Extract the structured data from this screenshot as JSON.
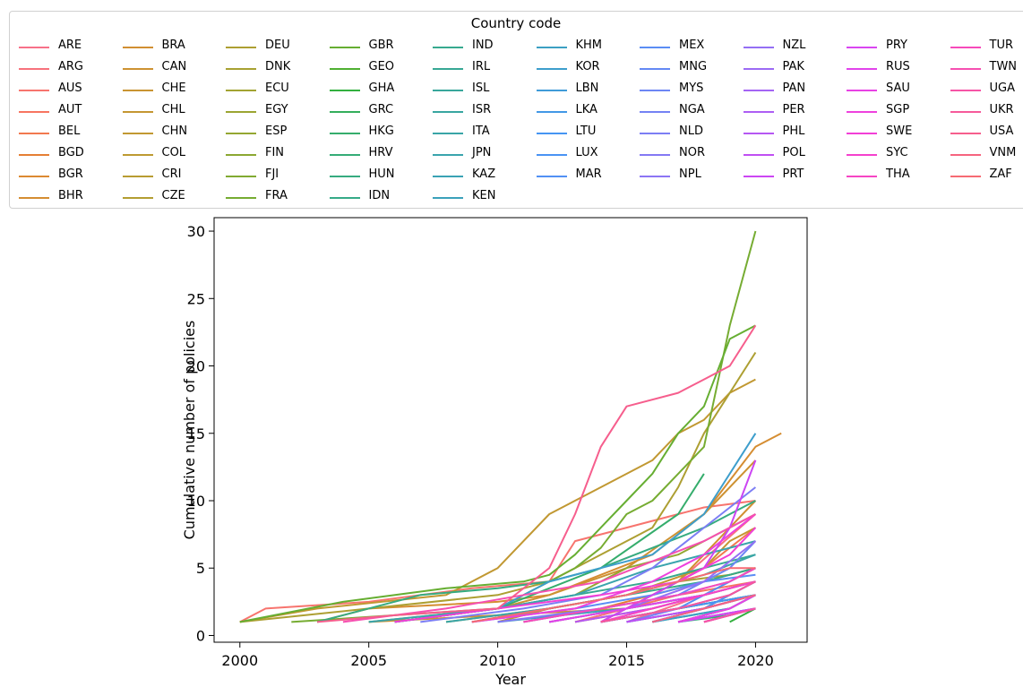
{
  "chart_data": {
    "type": "line",
    "xlabel": "Year",
    "ylabel": "Cumulative number of policies",
    "xlim": [
      1999,
      2022
    ],
    "ylim": [
      -0.5,
      31
    ],
    "xticks": [
      2000,
      2005,
      2010,
      2015,
      2020
    ],
    "yticks": [
      0,
      5,
      10,
      15,
      20,
      25,
      30
    ],
    "grid": false,
    "legend": {
      "title": "Country code",
      "placement": "top",
      "columns": 10
    },
    "series": [
      {
        "name": "ARE",
        "color": "#f77189",
        "x": [
          2015,
          2018,
          2020
        ],
        "y": [
          1,
          3,
          5
        ]
      },
      {
        "name": "ARG",
        "color": "#f7727c",
        "x": [
          2013,
          2015,
          2017,
          2020
        ],
        "y": [
          1,
          2,
          4,
          9
        ]
      },
      {
        "name": "AUS",
        "color": "#f7746e",
        "x": [
          2000,
          2001,
          2005,
          2009,
          2012,
          2013,
          2014,
          2015,
          2017,
          2018,
          2020
        ],
        "y": [
          1,
          2,
          2.5,
          3.5,
          4,
          7,
          7.5,
          8,
          9,
          9.5,
          10
        ]
      },
      {
        "name": "AUT",
        "color": "#f77560",
        "x": [
          2012,
          2015,
          2017,
          2020
        ],
        "y": [
          1,
          2,
          3,
          4
        ]
      },
      {
        "name": "BEL",
        "color": "#f2794f",
        "x": [
          2014,
          2016,
          2018,
          2020
        ],
        "y": [
          1,
          3,
          5,
          8
        ]
      },
      {
        "name": "BGD",
        "color": "#e57f34",
        "x": [
          2011,
          2014,
          2016,
          2018,
          2020
        ],
        "y": [
          1,
          2,
          3,
          4,
          5
        ]
      },
      {
        "name": "BGR",
        "color": "#dc8932",
        "x": [
          2016,
          2018,
          2020
        ],
        "y": [
          1,
          2,
          4
        ]
      },
      {
        "name": "BHR",
        "color": "#d58d32",
        "x": [
          2003,
          2005,
          2010,
          2012,
          2016,
          2018,
          2020,
          2021
        ],
        "y": [
          1,
          2,
          2.5,
          3,
          6,
          9,
          14,
          15
        ]
      },
      {
        "name": "BRA",
        "color": "#d18f32",
        "x": [
          2005,
          2010,
          2015,
          2017,
          2019,
          2020
        ],
        "y": [
          1,
          1.5,
          2,
          4,
          8,
          10
        ]
      },
      {
        "name": "CAN",
        "color": "#cd9232",
        "x": [
          2006,
          2010,
          2012,
          2015,
          2018,
          2020
        ],
        "y": [
          1,
          2,
          3,
          5,
          9,
          13
        ]
      },
      {
        "name": "CHE",
        "color": "#c99432",
        "x": [
          2017,
          2019,
          2020
        ],
        "y": [
          1,
          2,
          3
        ]
      },
      {
        "name": "CHL",
        "color": "#c49632",
        "x": [
          2010,
          2012,
          2015,
          2018,
          2019,
          2020
        ],
        "y": [
          1,
          2,
          3,
          5,
          7,
          8
        ]
      },
      {
        "name": "CHN",
        "color": "#c19832",
        "x": [
          2000,
          2003,
          2008,
          2010,
          2012,
          2014,
          2016,
          2017,
          2018,
          2019,
          2020
        ],
        "y": [
          1,
          2,
          3,
          5,
          9,
          11,
          13,
          15,
          16,
          18,
          19
        ]
      },
      {
        "name": "COL",
        "color": "#bd9a32",
        "x": [
          2016,
          2018,
          2020
        ],
        "y": [
          1,
          2,
          3
        ]
      },
      {
        "name": "CRI",
        "color": "#b89c32",
        "x": [
          2018,
          2020
        ],
        "y": [
          1,
          2
        ]
      },
      {
        "name": "CZE",
        "color": "#b39e32",
        "x": [
          2013,
          2016,
          2018,
          2020
        ],
        "y": [
          1,
          2,
          3,
          4
        ]
      },
      {
        "name": "DEU",
        "color": "#ad9f32",
        "x": [
          2000,
          2005,
          2010,
          2012,
          2014,
          2016,
          2017,
          2018,
          2020
        ],
        "y": [
          1,
          2,
          3,
          4,
          6,
          8,
          11,
          15,
          21
        ]
      },
      {
        "name": "DNK",
        "color": "#a8a132",
        "x": [
          2008,
          2012,
          2015,
          2017,
          2019,
          2020
        ],
        "y": [
          1,
          2,
          3,
          4,
          4.5,
          5
        ]
      },
      {
        "name": "ECU",
        "color": "#a2a332",
        "x": [
          2016,
          2018,
          2020
        ],
        "y": [
          1,
          2,
          3
        ]
      },
      {
        "name": "EGY",
        "color": "#9ba532",
        "x": [
          2014,
          2017,
          2020
        ],
        "y": [
          1,
          2,
          3
        ]
      },
      {
        "name": "ESP",
        "color": "#94a732",
        "x": [
          2005,
          2010,
          2013,
          2015,
          2017,
          2019,
          2020
        ],
        "y": [
          1,
          2,
          3,
          5,
          6,
          8,
          9
        ]
      },
      {
        "name": "FIN",
        "color": "#8ba832",
        "x": [
          2012,
          2015,
          2018,
          2020
        ],
        "y": [
          1,
          2,
          3,
          4
        ]
      },
      {
        "name": "FJI",
        "color": "#81aa32",
        "x": [
          2017,
          2019,
          2020
        ],
        "y": [
          1,
          2,
          3
        ]
      },
      {
        "name": "FRA",
        "color": "#76ac32",
        "x": [
          2002,
          2006,
          2010,
          2012,
          2013,
          2014,
          2015,
          2016,
          2017,
          2018,
          2019,
          2020
        ],
        "y": [
          1,
          1.5,
          2,
          4,
          5,
          6.5,
          9,
          10,
          12,
          14,
          23,
          30
        ]
      },
      {
        "name": "GBR",
        "color": "#66ae32",
        "x": [
          2000,
          2004,
          2008,
          2011,
          2012,
          2013,
          2014,
          2015,
          2016,
          2017,
          2018,
          2019,
          2020
        ],
        "y": [
          1,
          2.5,
          3.5,
          4,
          4.5,
          6,
          8,
          10,
          12,
          15,
          17,
          22,
          23
        ]
      },
      {
        "name": "GEO",
        "color": "#4fb032",
        "x": [
          2017,
          2019,
          2020
        ],
        "y": [
          1,
          2,
          3
        ]
      },
      {
        "name": "GHA",
        "color": "#33b03f",
        "x": [
          2019,
          2020
        ],
        "y": [
          1,
          2
        ]
      },
      {
        "name": "GRC",
        "color": "#34ae5c",
        "x": [
          2014,
          2017,
          2020
        ],
        "y": [
          1,
          2,
          3
        ]
      },
      {
        "name": "HKG",
        "color": "#35ad6c",
        "x": [
          2006,
          2010,
          2014,
          2017,
          2018
        ],
        "y": [
          1,
          2,
          5,
          9,
          12
        ]
      },
      {
        "name": "HRV",
        "color": "#35ac77",
        "x": [
          2017,
          2019,
          2020
        ],
        "y": [
          1,
          1.5,
          2
        ]
      },
      {
        "name": "HUN",
        "color": "#36ab80",
        "x": [
          2003,
          2007,
          2010,
          2012,
          2014,
          2016,
          2018,
          2020
        ],
        "y": [
          1,
          3,
          3.5,
          4,
          5,
          6.5,
          8,
          10
        ]
      },
      {
        "name": "IDN",
        "color": "#36aa88",
        "x": [
          2009,
          2012,
          2015,
          2018,
          2020
        ],
        "y": [
          1,
          2,
          3,
          4,
          5
        ]
      },
      {
        "name": "IND",
        "color": "#37a98f",
        "x": [
          2006,
          2010,
          2013,
          2016,
          2018,
          2020
        ],
        "y": [
          1,
          2,
          3,
          4,
          5,
          6
        ]
      },
      {
        "name": "IRL",
        "color": "#37a895",
        "x": [
          2015,
          2018,
          2020
        ],
        "y": [
          1,
          2,
          3
        ]
      },
      {
        "name": "ISL",
        "color": "#38a79b",
        "x": [
          2016,
          2019,
          2020
        ],
        "y": [
          1,
          2,
          3
        ]
      },
      {
        "name": "ISR",
        "color": "#38a6a1",
        "x": [
          2014,
          2017,
          2020
        ],
        "y": [
          1,
          2,
          3
        ]
      },
      {
        "name": "ITA",
        "color": "#39a5a7",
        "x": [
          2008,
          2012,
          2015,
          2018,
          2020
        ],
        "y": [
          1,
          2,
          3,
          4.5,
          6
        ]
      },
      {
        "name": "JPN",
        "color": "#3aa4ad",
        "x": [
          2005,
          2010,
          2013,
          2016,
          2018,
          2020
        ],
        "y": [
          1,
          2,
          3,
          5,
          6,
          7
        ]
      },
      {
        "name": "KAZ",
        "color": "#3aa2b4",
        "x": [
          2017,
          2020
        ],
        "y": [
          1,
          2
        ]
      },
      {
        "name": "KEN",
        "color": "#3ba1bb",
        "x": [
          2010,
          2015,
          2018,
          2020
        ],
        "y": [
          1,
          2,
          3,
          4
        ]
      },
      {
        "name": "KHM",
        "color": "#3ca0c3",
        "x": [
          2016,
          2019,
          2020
        ],
        "y": [
          1,
          2,
          3
        ]
      },
      {
        "name": "KOR",
        "color": "#3d9ecc",
        "x": [
          2006,
          2010,
          2012,
          2014,
          2016,
          2018,
          2020
        ],
        "y": [
          1,
          2,
          4,
          5,
          6,
          9,
          15
        ]
      },
      {
        "name": "LBN",
        "color": "#3f9bd8",
        "x": [
          2017,
          2020
        ],
        "y": [
          1,
          2
        ]
      },
      {
        "name": "LKA",
        "color": "#4298e6",
        "x": [
          2016,
          2018,
          2020
        ],
        "y": [
          1,
          2,
          3
        ]
      },
      {
        "name": "LTU",
        "color": "#4595f3",
        "x": [
          2014,
          2017,
          2020
        ],
        "y": [
          1,
          2,
          3
        ]
      },
      {
        "name": "LUX",
        "color": "#4a93f4",
        "x": [
          2015,
          2018,
          2020
        ],
        "y": [
          1,
          2,
          4
        ]
      },
      {
        "name": "MAR",
        "color": "#5290f4",
        "x": [
          2014,
          2017,
          2019,
          2020
        ],
        "y": [
          1,
          2,
          4,
          5
        ]
      },
      {
        "name": "MEX",
        "color": "#5b8df4",
        "x": [
          2009,
          2013,
          2016,
          2018,
          2020
        ],
        "y": [
          1,
          2,
          3,
          4,
          4.5
        ]
      },
      {
        "name": "MNG",
        "color": "#6489f4",
        "x": [
          2016,
          2018,
          2020
        ],
        "y": [
          1,
          2,
          3
        ]
      },
      {
        "name": "MYS",
        "color": "#6c86f4",
        "x": [
          2011,
          2014,
          2017,
          2019,
          2020
        ],
        "y": [
          1,
          2,
          3,
          5,
          7
        ]
      },
      {
        "name": "NGA",
        "color": "#7482f4",
        "x": [
          2015,
          2017,
          2019,
          2020
        ],
        "y": [
          1,
          2,
          3,
          4
        ]
      },
      {
        "name": "NLD",
        "color": "#7c7ef4",
        "x": [
          2007,
          2011,
          2014,
          2016,
          2018,
          2020
        ],
        "y": [
          1,
          2,
          3,
          5,
          8,
          11
        ]
      },
      {
        "name": "NOR",
        "color": "#8479f4",
        "x": [
          2010,
          2014,
          2017,
          2019,
          2020
        ],
        "y": [
          1,
          2,
          3,
          4,
          5
        ]
      },
      {
        "name": "NPL",
        "color": "#8c75f4",
        "x": [
          2017,
          2019,
          2020
        ],
        "y": [
          1,
          2,
          3
        ]
      },
      {
        "name": "NZL",
        "color": "#946ff4",
        "x": [
          2012,
          2015,
          2018,
          2020
        ],
        "y": [
          1,
          2,
          4,
          7
        ]
      },
      {
        "name": "PAK",
        "color": "#9c6af4",
        "x": [
          2016,
          2018,
          2020
        ],
        "y": [
          1,
          2,
          3
        ]
      },
      {
        "name": "PAN",
        "color": "#a464f4",
        "x": [
          2018,
          2020
        ],
        "y": [
          1,
          2
        ]
      },
      {
        "name": "PER",
        "color": "#ad5ef4",
        "x": [
          2014,
          2017,
          2019,
          2020
        ],
        "y": [
          1,
          2,
          3,
          4
        ]
      },
      {
        "name": "PHL",
        "color": "#b657f3",
        "x": [
          2013,
          2016,
          2018,
          2020
        ],
        "y": [
          1,
          2,
          3,
          4
        ]
      },
      {
        "name": "POL",
        "color": "#c04ff3",
        "x": [
          2015,
          2018,
          2020
        ],
        "y": [
          1,
          2,
          3
        ]
      },
      {
        "name": "PRT",
        "color": "#cc46f3",
        "x": [
          2014,
          2016,
          2018,
          2019,
          2020
        ],
        "y": [
          1,
          3,
          5,
          8,
          13
        ]
      },
      {
        "name": "PRY",
        "color": "#d945f1",
        "x": [
          2017,
          2020
        ],
        "y": [
          1,
          2
        ]
      },
      {
        "name": "RUS",
        "color": "#e143eb",
        "x": [
          2012,
          2015,
          2018,
          2020
        ],
        "y": [
          1,
          2,
          3,
          4
        ]
      },
      {
        "name": "SAU",
        "color": "#e842e4",
        "x": [
          2017,
          2019,
          2020
        ],
        "y": [
          1,
          2,
          3
        ]
      },
      {
        "name": "SGP",
        "color": "#ee41dd",
        "x": [
          2009,
          2013,
          2016,
          2018,
          2020
        ],
        "y": [
          1,
          2,
          4,
          6,
          9
        ]
      },
      {
        "name": "SWE",
        "color": "#f23fd6",
        "x": [
          2006,
          2010,
          2014,
          2017,
          2019,
          2020
        ],
        "y": [
          1,
          2,
          3,
          4,
          6,
          8
        ]
      },
      {
        "name": "SYC",
        "color": "#f541cd",
        "x": [
          2018,
          2020
        ],
        "y": [
          1,
          2
        ]
      },
      {
        "name": "THA",
        "color": "#f645c4",
        "x": [
          2014,
          2016,
          2018,
          2020
        ],
        "y": [
          1,
          2,
          3,
          4
        ]
      },
      {
        "name": "TUR",
        "color": "#f64aba",
        "x": [
          2011,
          2014,
          2017,
          2019,
          2020
        ],
        "y": [
          1,
          2,
          3,
          4,
          5
        ]
      },
      {
        "name": "TWN",
        "color": "#f64fb1",
        "x": [
          2004,
          2008,
          2011,
          2014,
          2016,
          2018,
          2020
        ],
        "y": [
          1,
          2,
          3,
          4,
          5.5,
          7,
          9
        ]
      },
      {
        "name": "UGA",
        "color": "#f654a6",
        "x": [
          2018,
          2020
        ],
        "y": [
          1,
          2
        ]
      },
      {
        "name": "UKR",
        "color": "#f6599a",
        "x": [
          2014,
          2017,
          2019,
          2020
        ],
        "y": [
          1,
          2,
          3,
          4
        ]
      },
      {
        "name": "USA",
        "color": "#f65e8d",
        "x": [
          2003,
          2006,
          2010,
          2012,
          2013,
          2014,
          2015,
          2017,
          2018,
          2019,
          2020
        ],
        "y": [
          1,
          1.5,
          2,
          5,
          9,
          14,
          17,
          18,
          19,
          20,
          23
        ]
      },
      {
        "name": "VNM",
        "color": "#f6647f",
        "x": [
          2016,
          2018,
          2020
        ],
        "y": [
          1,
          2,
          3
        ]
      },
      {
        "name": "ZAF",
        "color": "#f66a73",
        "x": [
          2009,
          2012,
          2015,
          2017,
          2019,
          2020
        ],
        "y": [
          1,
          2,
          3,
          4,
          5,
          5
        ]
      }
    ]
  }
}
